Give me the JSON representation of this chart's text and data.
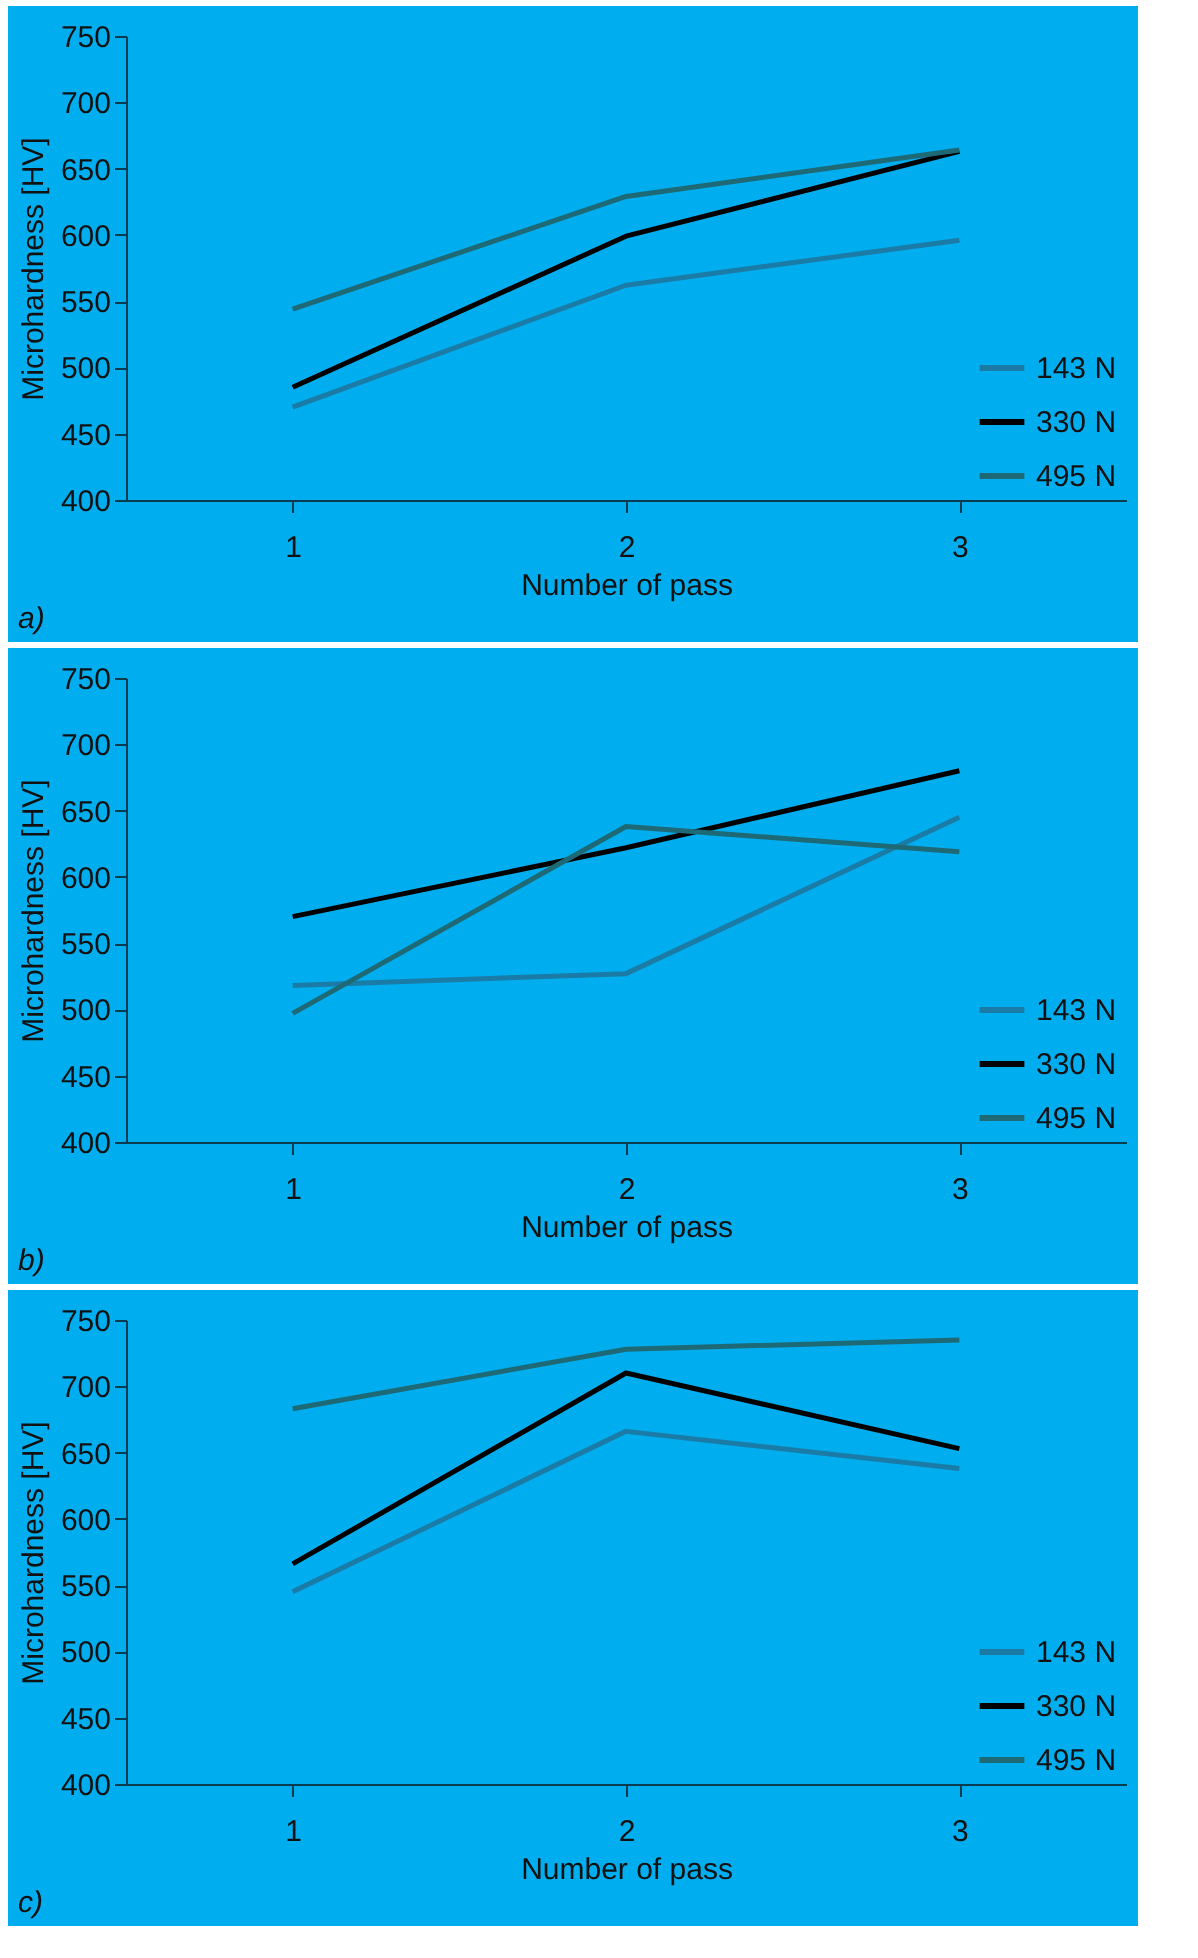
{
  "chart_data": [
    {
      "type": "line",
      "title": "a)",
      "xlabel": "Number of pass",
      "ylabel": "Microhardness  [HV]",
      "categories": [
        "1",
        "2",
        "3"
      ],
      "ylim": [
        400,
        750
      ],
      "yticks": [
        400,
        450,
        500,
        550,
        600,
        650,
        700,
        750
      ],
      "grid": false,
      "legend": "bottom right",
      "marker": "none",
      "series": [
        {
          "name": "143 N",
          "color": "#1a7ca6",
          "values": [
            470,
            562,
            596
          ]
        },
        {
          "name": "330 N",
          "color": "#000000",
          "values": [
            485,
            599,
            663
          ]
        },
        {
          "name": "495 N",
          "color": "#1d6a76",
          "values": [
            544,
            629,
            664
          ]
        }
      ]
    },
    {
      "type": "line",
      "title": "b)",
      "xlabel": "Number of pass",
      "ylabel": "Microhardness  [HV]",
      "categories": [
        "1",
        "2",
        "3"
      ],
      "ylim": [
        400,
        750
      ],
      "yticks": [
        400,
        450,
        500,
        550,
        600,
        650,
        700,
        750
      ],
      "grid": false,
      "legend": "bottom right",
      "marker": "none",
      "series": [
        {
          "name": "143 N",
          "color": "#1a7ca6",
          "values": [
            518,
            527,
            645
          ]
        },
        {
          "name": "330 N",
          "color": "#000000",
          "values": [
            570,
            622,
            680
          ]
        },
        {
          "name": "495 N",
          "color": "#1d6a76",
          "values": [
            497,
            638,
            619
          ]
        }
      ]
    },
    {
      "type": "line",
      "title": "c)",
      "xlabel": "Number of pass",
      "ylabel": "Microhardness  [HV]",
      "categories": [
        "1",
        "2",
        "3"
      ],
      "ylim": [
        400,
        750
      ],
      "yticks": [
        400,
        450,
        500,
        550,
        600,
        650,
        700,
        750
      ],
      "grid": false,
      "legend": "bottom right",
      "marker": "none",
      "series": [
        {
          "name": "143 N",
          "color": "#1a7ca6",
          "values": [
            545,
            666,
            638
          ]
        },
        {
          "name": "330 N",
          "color": "#000000",
          "values": [
            566,
            710,
            653
          ]
        },
        {
          "name": "495 N",
          "color": "#1d6a76",
          "values": [
            683,
            728,
            735
          ]
        }
      ]
    }
  ]
}
